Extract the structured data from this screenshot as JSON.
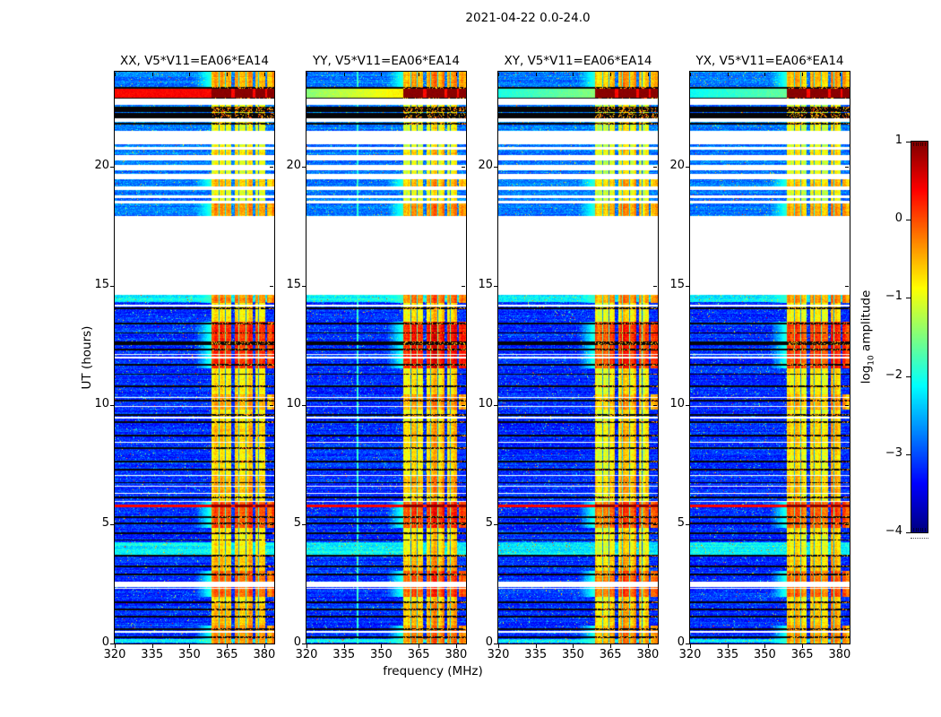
{
  "chart_data": {
    "type": "heatmap",
    "title": "2021-04-22 0.0-24.0",
    "xlabel": "frequency (MHz)",
    "ylabel": "UT (hours)",
    "x_range": [
      320,
      384
    ],
    "x_tick_values": [
      320,
      335,
      350,
      365,
      380
    ],
    "x_ticks": [
      "320",
      "335",
      "350",
      "365",
      "380"
    ],
    "y_range": [
      0,
      24
    ],
    "y_tick_values": [
      0,
      5,
      10,
      15,
      20
    ],
    "y_ticks": [
      "0",
      "5",
      "10",
      "15",
      "20"
    ],
    "grid": false,
    "colorbar": {
      "label_prefix": "log",
      "label_sub": "10",
      "label_suffix": " amplitude",
      "tick_values": [
        1,
        0,
        -1,
        -2,
        -3,
        -4
      ],
      "tick_labels": [
        "1",
        "0",
        "−1",
        "−2",
        "−3",
        "−4"
      ],
      "range": [
        -4,
        1
      ],
      "colormap": "jet"
    },
    "panels": [
      {
        "label": "XX, V5*V11=EA06*EA14",
        "seed": 11,
        "band_gain": 1.0,
        "flare_level": 0.38,
        "flare_gradient": 0.05,
        "vline_f": 0
      },
      {
        "label": "YY, V5*V11=EA06*EA14",
        "seed": 22,
        "band_gain": 1.12,
        "flare_level": -0.9,
        "flare_gradient": 1.1,
        "vline_f": 340.5
      },
      {
        "label": "XY, V5*V11=EA06*EA14",
        "seed": 33,
        "band_gain": 1.0,
        "flare_level": -1.55,
        "flare_gradient": 0.9,
        "vline_f": 0
      },
      {
        "label": "YX, V5*V11=EA06*EA14",
        "seed": 44,
        "band_gain": 0.95,
        "flare_level": -1.7,
        "flare_gradient": 0.8,
        "vline_f": 0
      }
    ],
    "features": {
      "no_data": [
        [
          14.65,
          17.95
        ]
      ],
      "flare_band": [
        22.92,
        23.27
      ],
      "red_lines": [
        [
          5.7,
          5.82
        ]
      ],
      "cyan_bands": [
        [
          3.7,
          4.25
        ],
        [
          0.02,
          0.2
        ],
        [
          14.35,
          14.62
        ]
      ],
      "rfi": {
        "f0": 359.0,
        "f1": 384.0,
        "sub_gaps": [
          [
            366.8,
            368.2
          ],
          [
            375.4,
            376.5
          ],
          [
            380.3,
            381.2
          ]
        ],
        "dark_cols": [
          361.8,
          364.4,
          369.9,
          372.7,
          377.6
        ],
        "base": -1.05,
        "lead_f0": 352.0
      },
      "hot_intervals": [
        [
          23.3,
          24.0,
          0.45
        ],
        [
          17.95,
          18.6,
          0.5
        ],
        [
          19.15,
          19.55,
          0.35
        ],
        [
          20.35,
          20.85,
          0.22
        ],
        [
          14.3,
          14.65,
          0.45
        ],
        [
          11.55,
          13.5,
          0.85
        ],
        [
          9.8,
          10.45,
          0.3
        ],
        [
          8.3,
          9.2,
          0.15
        ],
        [
          6.3,
          7.05,
          0.25
        ],
        [
          4.85,
          5.95,
          0.7
        ],
        [
          3.05,
          3.7,
          0.2
        ],
        [
          1.95,
          3.05,
          0.62
        ],
        [
          0.75,
          1.7,
          0.2
        ],
        [
          0.0,
          0.75,
          0.4
        ]
      ],
      "white_stripes": [
        [
          22.6,
          22.88
        ],
        [
          21.88,
          22.05
        ],
        [
          20.95,
          21.5
        ],
        [
          20.73,
          20.85
        ],
        [
          20.27,
          20.5
        ],
        [
          19.85,
          20.08
        ],
        [
          19.5,
          19.72
        ],
        [
          19.02,
          19.17
        ],
        [
          18.68,
          18.82
        ],
        [
          18.47,
          18.58
        ],
        [
          14.15,
          14.22
        ],
        [
          12.1,
          12.16
        ],
        [
          11.98,
          12.03
        ],
        [
          10.3,
          10.34
        ],
        [
          9.92,
          9.98
        ],
        [
          9.46,
          9.52
        ],
        [
          8.42,
          8.48
        ],
        [
          7.02,
          7.08
        ],
        [
          6.57,
          6.63
        ],
        [
          6.27,
          6.33
        ],
        [
          5.95,
          6.0
        ],
        [
          2.38,
          2.6
        ],
        [
          2.28,
          2.34
        ],
        [
          0.47,
          0.52
        ]
      ],
      "black_stripes": [
        [
          23.27,
          23.35
        ],
        [
          22.85,
          22.92
        ],
        [
          22.32,
          22.55
        ],
        [
          22.05,
          22.28
        ],
        [
          21.78,
          21.86
        ],
        [
          14.05,
          14.12
        ],
        [
          13.38,
          13.46
        ],
        [
          13.0,
          13.06
        ],
        [
          12.52,
          12.66
        ],
        [
          12.3,
          12.36
        ],
        [
          11.66,
          11.74
        ],
        [
          11.28,
          11.34
        ],
        [
          10.74,
          10.82
        ],
        [
          10.14,
          10.22
        ],
        [
          9.56,
          9.64
        ],
        [
          9.27,
          9.33
        ],
        [
          8.7,
          8.78
        ],
        [
          8.16,
          8.24
        ],
        [
          7.6,
          7.66
        ],
        [
          7.26,
          7.34
        ],
        [
          6.72,
          6.78
        ],
        [
          6.1,
          6.18
        ],
        [
          5.26,
          5.34
        ],
        [
          5.0,
          5.06
        ],
        [
          4.6,
          4.68
        ],
        [
          4.32,
          4.38
        ],
        [
          3.66,
          3.74
        ],
        [
          3.18,
          3.28
        ],
        [
          2.86,
          2.94
        ],
        [
          1.7,
          1.78
        ],
        [
          1.4,
          1.46
        ],
        [
          1.1,
          1.18
        ],
        [
          0.56,
          0.64
        ],
        [
          0.22,
          0.3
        ]
      ]
    }
  }
}
